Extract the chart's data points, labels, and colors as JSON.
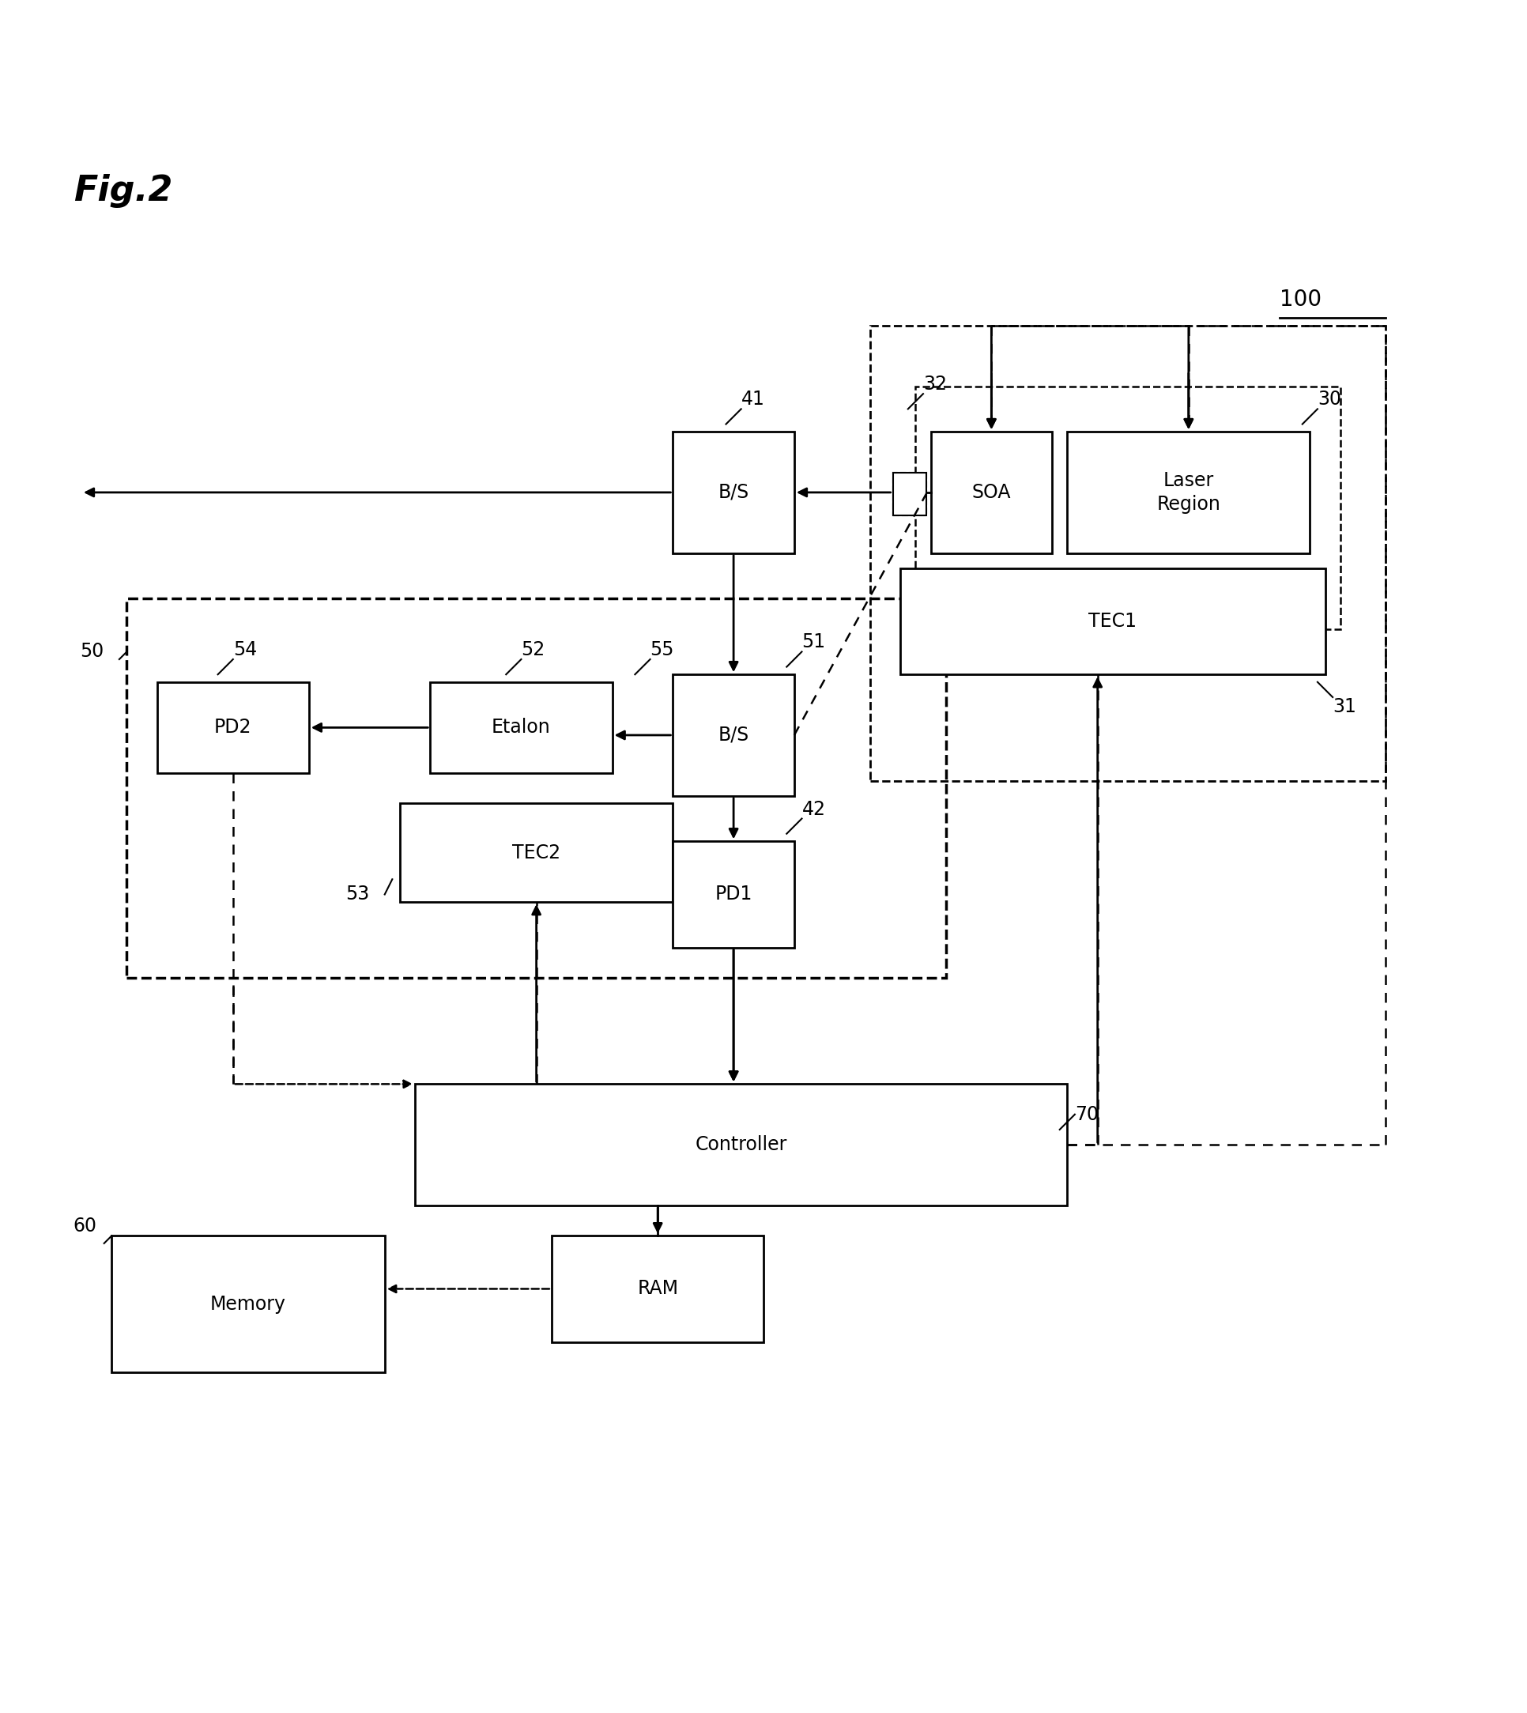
{
  "fig_title": "Fig.2",
  "label_100": "100",
  "label_30": "30",
  "label_31": "31",
  "label_32": "32",
  "label_41": "41",
  "label_42": "42",
  "label_50": "50",
  "label_51": "51",
  "label_52": "52",
  "label_53": "53",
  "label_54": "54",
  "label_55": "55",
  "label_60": "60",
  "label_70": "70",
  "box_BS1_label": "B/S",
  "box_SOA_label": "SOA",
  "box_LaserRegion_label": "Laser\nRegion",
  "box_TEC1_label": "TEC1",
  "box_BS2_label": "B/S",
  "box_PD1_label": "PD1",
  "box_Etalon_label": "Etalon",
  "box_TEC2_label": "TEC2",
  "box_PD2_label": "PD2",
  "box_Controller_label": "Controller",
  "box_RAM_label": "RAM",
  "box_Memory_label": "Memory",
  "bg_color": "#ffffff",
  "box_color": "#ffffff",
  "line_color": "#000000",
  "font_size_title": 32,
  "font_size_label": 17,
  "font_size_box": 17
}
